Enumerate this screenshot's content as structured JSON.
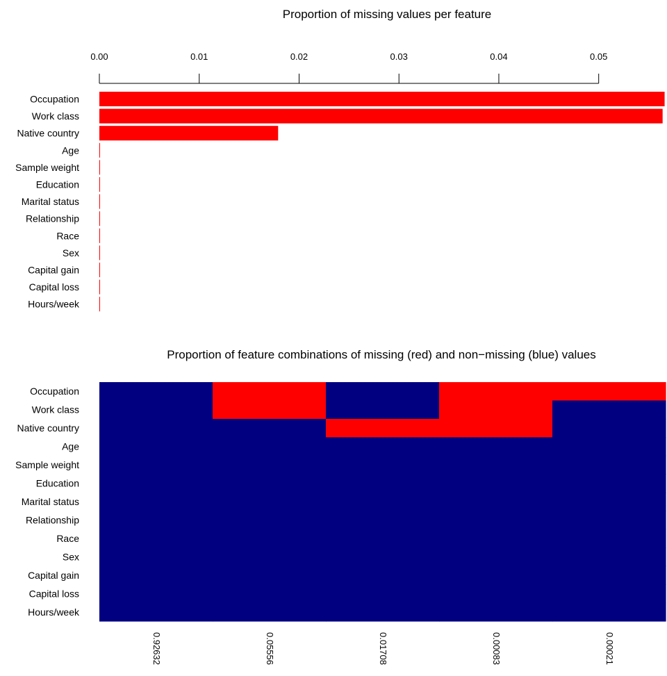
{
  "colors": {
    "missing": "#ff0000",
    "present": "#000080",
    "axis": "#000000",
    "background": "#ffffff"
  },
  "chart_data": [
    {
      "type": "bar",
      "orientation": "horizontal",
      "title": "Proportion of missing values per feature",
      "xlabel": "",
      "ylabel": "",
      "xlim": [
        0,
        0.0567
      ],
      "ticks": [
        "0.00",
        "0.01",
        "0.02",
        "0.03",
        "0.04",
        "0.05"
      ],
      "tick_values": [
        0,
        0.01,
        0.02,
        0.03,
        0.04,
        0.05
      ],
      "categories": [
        "Occupation",
        "Work class",
        "Native country",
        "Age",
        "Sample weight",
        "Education",
        "Marital status",
        "Relationship",
        "Race",
        "Sex",
        "Capital gain",
        "Capital loss",
        "Hours/week"
      ],
      "values": [
        0.0566,
        0.0564,
        0.0179,
        0,
        0,
        0,
        0,
        0,
        0,
        0,
        0,
        0,
        0
      ],
      "axis_position": "top",
      "grid": false,
      "legend": "none"
    },
    {
      "type": "heatmap",
      "title": "Proportion of feature combinations of missing (red) and non−missing (blue) values",
      "rows": [
        "Occupation",
        "Work class",
        "Native country",
        "Age",
        "Sample weight",
        "Education",
        "Marital status",
        "Relationship",
        "Race",
        "Sex",
        "Capital gain",
        "Capital loss",
        "Hours/week"
      ],
      "columns": [
        "0.92632",
        "0.05556",
        "0.01708",
        "0.00083",
        "0.00021"
      ],
      "missing_matrix": [
        [
          0,
          1,
          0,
          1,
          1
        ],
        [
          0,
          1,
          0,
          1,
          0
        ],
        [
          0,
          0,
          1,
          1,
          0
        ],
        [
          0,
          0,
          0,
          0,
          0
        ],
        [
          0,
          0,
          0,
          0,
          0
        ],
        [
          0,
          0,
          0,
          0,
          0
        ],
        [
          0,
          0,
          0,
          0,
          0
        ],
        [
          0,
          0,
          0,
          0,
          0
        ],
        [
          0,
          0,
          0,
          0,
          0
        ],
        [
          0,
          0,
          0,
          0,
          0
        ],
        [
          0,
          0,
          0,
          0,
          0
        ],
        [
          0,
          0,
          0,
          0,
          0
        ],
        [
          0,
          0,
          0,
          0,
          0
        ]
      ],
      "legend": "none"
    }
  ]
}
